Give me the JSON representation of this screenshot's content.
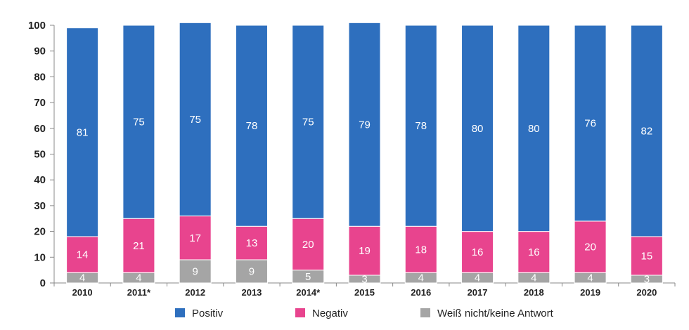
{
  "chart_data": {
    "type": "bar",
    "stacked": true,
    "categories": [
      "2010",
      "2011*",
      "2012",
      "2013",
      "2014*",
      "2015",
      "2016",
      "2017",
      "2018",
      "2019",
      "2020"
    ],
    "series": [
      {
        "name": "Weiß nicht/keine Antwort",
        "color": "#a5a5a5",
        "values": [
          4,
          4,
          9,
          9,
          5,
          3,
          4,
          4,
          4,
          4,
          3
        ]
      },
      {
        "name": "Negativ",
        "color": "#e8448e",
        "values": [
          14,
          21,
          17,
          13,
          20,
          19,
          18,
          16,
          16,
          20,
          15
        ]
      },
      {
        "name": "Positiv",
        "color": "#2e6fbe",
        "values": [
          81,
          75,
          75,
          78,
          75,
          79,
          78,
          80,
          80,
          76,
          82
        ]
      }
    ],
    "legend_order": [
      "Positiv",
      "Negativ",
      "Weiß nicht/keine Antwort"
    ],
    "ylim": [
      0,
      100
    ],
    "yticks": [
      0,
      10,
      20,
      30,
      40,
      50,
      60,
      70,
      80,
      90,
      100
    ],
    "grid": false,
    "legend_placement": "bottom",
    "data_labels": true
  }
}
